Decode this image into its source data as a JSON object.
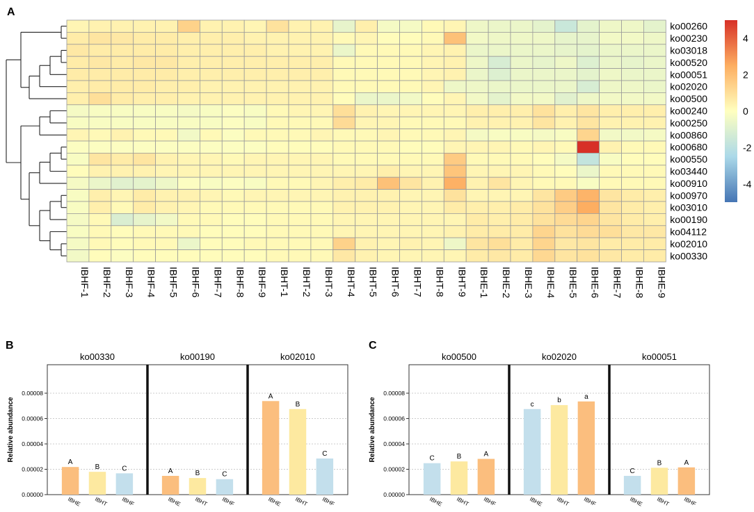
{
  "chart_data": [
    {
      "type": "heatmap",
      "panel": "A",
      "rows": [
        "ko00260",
        "ko00230",
        "ko03018",
        "ko00520",
        "ko00051",
        "ko02020",
        "ko00500",
        "ko00240",
        "ko00250",
        "ko00860",
        "ko00680",
        "ko00550",
        "ko03440",
        "ko00910",
        "ko00970",
        "ko03010",
        "ko00190",
        "ko04112",
        "ko02010",
        "ko00330"
      ],
      "columns": [
        "IBHF-1",
        "IBHF-2",
        "IBHF-3",
        "IBHF-4",
        "IBHF-5",
        "IBHF-6",
        "IBHF-7",
        "IBHF-8",
        "IBHF-9",
        "IBHT-1",
        "IBHT-2",
        "IBHT-3",
        "IBHT-4",
        "IBHT-5",
        "IBHT-6",
        "IBHT-7",
        "IBHT-8",
        "IBHT-9",
        "IBHE-1",
        "IBHE-2",
        "IBHE-3",
        "IBHE-4",
        "IBHE-5",
        "IBHE-6",
        "IBHE-7",
        "IBHE-8",
        "IBHE-9"
      ],
      "values": [
        [
          0.3,
          0.4,
          0.4,
          0.4,
          0.4,
          1.4,
          0.4,
          0.4,
          0.3,
          0.9,
          0.4,
          0.4,
          -0.7,
          0.5,
          -0.3,
          -0.3,
          0.2,
          0.3,
          -0.5,
          -0.6,
          -0.6,
          -0.8,
          -1.6,
          -0.8,
          -0.5,
          -0.5,
          -0.8
        ],
        [
          0.6,
          0.8,
          0.7,
          0.6,
          0.6,
          0.5,
          0.5,
          0.5,
          0.4,
          0.4,
          0.4,
          0.4,
          0.2,
          0.3,
          0.1,
          0.1,
          0.2,
          1.9,
          -0.4,
          -0.5,
          -0.5,
          -0.5,
          -0.7,
          -0.7,
          -0.4,
          -0.4,
          -0.5
        ],
        [
          0.7,
          0.6,
          0.6,
          0.6,
          0.6,
          0.5,
          0.5,
          0.5,
          0.5,
          0.4,
          0.4,
          0.4,
          -0.6,
          0.2,
          0.2,
          0.2,
          0.3,
          0.4,
          -0.6,
          -0.6,
          -0.6,
          -0.6,
          -0.7,
          -0.8,
          -0.6,
          -0.6,
          -0.6
        ],
        [
          0.6,
          0.7,
          0.6,
          0.7,
          0.7,
          0.5,
          0.5,
          0.5,
          0.5,
          0.5,
          0.5,
          0.5,
          0.2,
          0.2,
          0.2,
          0.2,
          0.3,
          0.4,
          -0.5,
          -1.2,
          -0.6,
          -0.7,
          -0.5,
          -1.0,
          -0.6,
          -0.7,
          -0.6
        ],
        [
          0.6,
          0.6,
          0.6,
          0.6,
          0.6,
          0.5,
          0.5,
          0.5,
          0.5,
          0.5,
          0.5,
          0.5,
          0.2,
          0.2,
          0.2,
          0.2,
          0.3,
          0.4,
          -0.6,
          -1.0,
          -0.6,
          -0.6,
          -0.6,
          -0.8,
          -0.5,
          -0.6,
          -0.6
        ],
        [
          0.5,
          0.6,
          0.6,
          0.6,
          0.5,
          0.5,
          0.4,
          0.4,
          0.4,
          0.4,
          0.4,
          0.4,
          0.2,
          0.2,
          0.2,
          0.2,
          0.3,
          -0.5,
          -0.5,
          -0.6,
          -0.6,
          -0.6,
          -0.6,
          -1.2,
          -0.5,
          -0.5,
          -0.6
        ],
        [
          0.5,
          1.0,
          0.6,
          0.5,
          0.5,
          0.4,
          0.4,
          0.4,
          0.4,
          0.4,
          0.4,
          0.4,
          0.1,
          -0.6,
          -0.6,
          -0.4,
          0.1,
          0.3,
          -0.4,
          -0.8,
          -0.4,
          -0.4,
          -0.9,
          -0.5,
          -0.4,
          -0.4,
          -0.4
        ],
        [
          -0.3,
          -0.2,
          -0.2,
          -0.2,
          -0.2,
          -0.3,
          -0.2,
          -0.1,
          -0.2,
          0.2,
          0.3,
          0.3,
          1.0,
          0.4,
          0.3,
          0.3,
          0.3,
          0.3,
          0.5,
          0.5,
          0.5,
          0.9,
          0.5,
          0.8,
          0.5,
          0.5,
          0.5
        ],
        [
          -0.2,
          -0.2,
          -0.2,
          -0.2,
          -0.2,
          -0.2,
          -0.2,
          -0.1,
          -0.2,
          0.2,
          0.2,
          0.2,
          1.1,
          0.3,
          0.3,
          0.2,
          0.2,
          0.2,
          0.4,
          0.4,
          0.4,
          0.8,
          0.4,
          0.8,
          0.4,
          0.4,
          0.4
        ],
        [
          0.3,
          0.2,
          0.4,
          0.2,
          0.2,
          -0.4,
          0.2,
          -0.1,
          0.2,
          0.2,
          0.2,
          0.3,
          0.2,
          0.2,
          0.3,
          0.2,
          0.2,
          0.3,
          -0.3,
          -0.2,
          -0.2,
          -0.3,
          -0.2,
          1.3,
          -0.4,
          -0.4,
          -0.3
        ],
        [
          -0.1,
          -0.1,
          -0.1,
          -0.1,
          -0.1,
          -0.1,
          -0.1,
          -0.1,
          -0.1,
          0.1,
          0.1,
          0.1,
          0.2,
          0.2,
          0.2,
          0.1,
          0.1,
          0.3,
          0.3,
          0.3,
          0.2,
          0.3,
          0.2,
          5.0,
          0.4,
          0.2,
          0.2
        ],
        [
          -0.2,
          0.8,
          0.6,
          0.8,
          0.4,
          0.3,
          0.3,
          0.2,
          0.3,
          0.3,
          0.3,
          0.3,
          0.2,
          0.2,
          0.2,
          0.2,
          0.2,
          1.6,
          0.2,
          0.2,
          0.2,
          0.1,
          -0.3,
          -1.8,
          -0.2,
          0.1,
          0.1
        ],
        [
          0.1,
          0.4,
          0.4,
          0.4,
          0.3,
          0.3,
          0.3,
          0.3,
          0.3,
          0.3,
          0.3,
          0.3,
          0.3,
          0.3,
          0.5,
          0.3,
          0.3,
          1.8,
          0.3,
          0.3,
          0.3,
          0.2,
          0.1,
          -0.6,
          0.2,
          0.2,
          0.2
        ],
        [
          -0.3,
          -0.6,
          -0.9,
          -0.8,
          -0.5,
          -0.1,
          -0.2,
          -0.1,
          -0.2,
          0.2,
          0.2,
          0.3,
          0.5,
          0.6,
          1.9,
          0.8,
          0.4,
          2.4,
          0.4,
          0.8,
          0.3,
          0.2,
          0.2,
          -0.2,
          0.2,
          0.2,
          0.2
        ],
        [
          -0.2,
          0.5,
          0.3,
          0.6,
          0.4,
          0.4,
          0.3,
          0.2,
          0.3,
          0.3,
          0.3,
          0.3,
          0.4,
          0.4,
          0.4,
          0.3,
          0.3,
          0.9,
          0.3,
          0.3,
          0.3,
          0.8,
          1.6,
          2.3,
          0.8,
          0.6,
          0.5
        ],
        [
          -0.2,
          0.5,
          0.2,
          0.6,
          0.4,
          0.3,
          0.2,
          0.2,
          0.2,
          0.2,
          0.2,
          0.2,
          0.4,
          0.4,
          0.4,
          0.3,
          0.3,
          0.6,
          0.5,
          0.5,
          0.6,
          0.9,
          1.5,
          2.5,
          0.8,
          0.6,
          0.5
        ],
        [
          -0.3,
          0.2,
          -1.1,
          -0.7,
          -0.4,
          0.2,
          0.2,
          0.1,
          0.1,
          0.2,
          0.2,
          0.2,
          0.3,
          0.3,
          0.3,
          0.3,
          0.3,
          0.3,
          0.6,
          0.5,
          0.6,
          0.9,
          1.1,
          1.3,
          0.8,
          0.6,
          0.5
        ],
        [
          -0.2,
          0.2,
          0.1,
          0.2,
          0.2,
          0.2,
          0.1,
          0.1,
          0.1,
          0.2,
          0.2,
          0.2,
          0.3,
          0.3,
          0.3,
          0.3,
          0.3,
          0.4,
          0.6,
          0.6,
          0.6,
          1.3,
          0.9,
          1.1,
          1.0,
          0.7,
          0.7
        ],
        [
          -0.3,
          0.2,
          0.1,
          0.2,
          0.2,
          -0.6,
          0.1,
          0.1,
          0.2,
          0.2,
          0.2,
          0.2,
          1.4,
          0.4,
          0.3,
          0.4,
          0.3,
          -0.5,
          0.8,
          1.0,
          0.6,
          1.3,
          0.7,
          0.8,
          0.6,
          0.6,
          0.6
        ],
        [
          -0.4,
          0.1,
          -0.1,
          0.1,
          0.1,
          0.1,
          0.1,
          0.1,
          0.1,
          0.2,
          0.2,
          0.2,
          0.7,
          0.4,
          0.3,
          0.3,
          0.3,
          0.3,
          0.6,
          0.7,
          0.6,
          1.2,
          0.8,
          0.9,
          0.7,
          0.6,
          0.6
        ]
      ],
      "color_scale": {
        "min": -5,
        "max": 5,
        "ticks": [
          "4",
          "2",
          "0",
          "-2",
          "-4"
        ],
        "colors": [
          "#4575b4",
          "#abd9e9",
          "#ffffbf",
          "#fdae61",
          "#d73027"
        ]
      }
    },
    {
      "type": "bar",
      "panel": "B",
      "ylabel": "Relative abundance",
      "ylim": [
        0,
        0.0001
      ],
      "yticks": [
        "0.00000",
        "0.00002",
        "0.00004",
        "0.00006",
        "0.00008"
      ],
      "facets": [
        {
          "title": "ko00330",
          "categories": [
            "IBHE",
            "IBHT",
            "IBHF"
          ],
          "values": [
            2.18e-05,
            1.8e-05,
            1.68e-05
          ],
          "letters": [
            "A",
            "B",
            "C"
          ]
        },
        {
          "title": "ko00190",
          "categories": [
            "IBHE",
            "IBHT",
            "IBHF"
          ],
          "values": [
            1.48e-05,
            1.31e-05,
            1.22e-05
          ],
          "letters": [
            "A",
            "B",
            "C"
          ]
        },
        {
          "title": "ko02010",
          "categories": [
            "IBHE",
            "IBHT",
            "IBHF"
          ],
          "values": [
            7.38e-05,
            6.75e-05,
            2.85e-05
          ],
          "letters": [
            "A",
            "B",
            "C"
          ]
        }
      ]
    },
    {
      "type": "bar",
      "panel": "C",
      "ylabel": "Relative abundance",
      "ylim": [
        0,
        0.0001
      ],
      "yticks": [
        "0.00000",
        "0.00002",
        "0.00004",
        "0.00006",
        "0.00008"
      ],
      "facets": [
        {
          "title": "ko00500",
          "categories": [
            "IBHE",
            "IBHT",
            "IBHF"
          ],
          "values": [
            2.48e-05,
            2.62e-05,
            2.82e-05
          ],
          "letters": [
            "C",
            "B",
            "A"
          ]
        },
        {
          "title": "ko02020",
          "categories": [
            "IBHE",
            "IBHT",
            "IBHF"
          ],
          "values": [
            6.75e-05,
            7.06e-05,
            7.35e-05
          ],
          "letters": [
            "c",
            "b",
            "a"
          ]
        },
        {
          "title": "ko00051",
          "categories": [
            "IBHE",
            "IBHT",
            "IBHF"
          ],
          "values": [
            1.48e-05,
            2.12e-05,
            2.15e-05
          ],
          "letters": [
            "C",
            "B",
            "A"
          ]
        }
      ]
    }
  ],
  "bar_colors": {
    "IBHE": "#fbbe7e",
    "IBHT": "#fde9a0",
    "IBHF": "#c3dfec"
  },
  "bar_colors_C": {
    "ko00500": [
      "#c3dfec",
      "#fde9a0",
      "#fbbe7e"
    ],
    "ko02020": [
      "#c3dfec",
      "#fde9a0",
      "#fbbe7e"
    ],
    "ko00051": [
      "#c3dfec",
      "#fde9a0",
      "#fbbe7e"
    ]
  }
}
